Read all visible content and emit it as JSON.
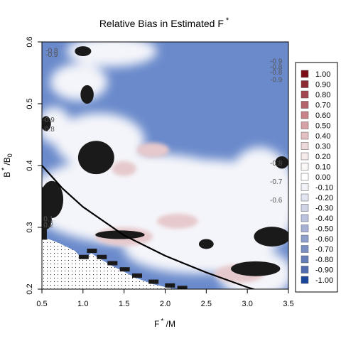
{
  "chart_data": {
    "type": "heatmap",
    "title": "Relative Bias in Estimated F",
    "title_superscript": "*",
    "xlabel": "F",
    "xlabel_superscript": "*",
    "xlabel_suffix": " /M",
    "ylabel": "B",
    "ylabel_superscript": "*",
    "ylabel_suffix": " /B",
    "ylabel_subscript": "0",
    "xlim": [
      0.5,
      3.5
    ],
    "ylim": [
      0.2,
      0.6
    ],
    "x_ticks": [
      "0.5",
      "1.0",
      "1.5",
      "2.0",
      "2.5",
      "3.0",
      "3.5"
    ],
    "y_ticks": [
      "0.2",
      "0.3",
      "0.4",
      "0.5",
      "0.6"
    ],
    "background_color": "#6a8acb",
    "legend": {
      "placement": "right",
      "entries": [
        {
          "label": "1.00",
          "color": "#7a0d16"
        },
        {
          "label": "0.90",
          "color": "#8e2a33"
        },
        {
          "label": "0.80",
          "color": "#a2474f"
        },
        {
          "label": "0.70",
          "color": "#b5646b"
        },
        {
          "label": "0.60",
          "color": "#c78388"
        },
        {
          "label": "0.50",
          "color": "#d6a2a5"
        },
        {
          "label": "0.40",
          "color": "#e3c0c2"
        },
        {
          "label": "0.30",
          "color": "#eed9da"
        },
        {
          "label": "0.20",
          "color": "#f6ecec"
        },
        {
          "label": "0.10",
          "color": "#fbf7f7"
        },
        {
          "label": "0.00",
          "color": "#ffffff"
        },
        {
          "label": "-0.10",
          "color": "#f2f3f8"
        },
        {
          "label": "-0.20",
          "color": "#e2e5f1"
        },
        {
          "label": "-0.30",
          "color": "#cfd4e8"
        },
        {
          "label": "-0.40",
          "color": "#bbc3df"
        },
        {
          "label": "-0.50",
          "color": "#a6b1d5"
        },
        {
          "label": "-0.60",
          "color": "#90a0cc"
        },
        {
          "label": "-0.70",
          "color": "#7b8fc3"
        },
        {
          "label": "-0.80",
          "color": "#667eb9"
        },
        {
          "label": "-0.90",
          "color": "#506caf"
        },
        {
          "label": "-1.00",
          "color": "#19459a"
        }
      ]
    },
    "curve": [
      [
        0.5,
        0.4
      ],
      [
        0.75,
        0.363
      ],
      [
        1.0,
        0.333
      ],
      [
        1.5,
        0.287
      ],
      [
        2.0,
        0.254
      ],
      [
        2.5,
        0.227
      ],
      [
        3.0,
        0.203
      ],
      [
        3.1,
        0.199
      ]
    ],
    "regions": {
      "white_zones": [
        {
          "cx": 1.75,
          "cy": 0.345,
          "rx": 1.45,
          "ry": 0.075
        },
        {
          "cx": 3.15,
          "cy": 0.345,
          "rx": 0.45,
          "ry": 0.085
        },
        {
          "cx": 2.4,
          "cy": 0.38,
          "rx": 0.9,
          "ry": 0.03
        },
        {
          "cx": 1.2,
          "cy": 0.44,
          "rx": 0.55,
          "ry": 0.045
        },
        {
          "cx": 0.95,
          "cy": 0.535,
          "rx": 0.35,
          "ry": 0.03
        },
        {
          "cx": 1.35,
          "cy": 0.585,
          "rx": 0.55,
          "ry": 0.025
        },
        {
          "cx": 0.65,
          "cy": 0.465,
          "rx": 0.2,
          "ry": 0.03
        },
        {
          "cx": 2.4,
          "cy": 0.265,
          "rx": 0.9,
          "ry": 0.04
        },
        {
          "cx": 3.1,
          "cy": 0.225,
          "rx": 0.45,
          "ry": 0.04
        }
      ],
      "pink_zones": [
        {
          "cx": 1.5,
          "cy": 0.285,
          "rx": 0.35,
          "ry": 0.015
        },
        {
          "cx": 1.85,
          "cy": 0.425,
          "rx": 0.2,
          "ry": 0.012
        },
        {
          "cx": 2.15,
          "cy": 0.31,
          "rx": 0.25,
          "ry": 0.012
        },
        {
          "cx": 1.5,
          "cy": 0.395,
          "rx": 0.15,
          "ry": 0.012
        },
        {
          "cx": 2.9,
          "cy": 0.225,
          "rx": 0.3,
          "ry": 0.015
        }
      ],
      "black_blobs": [
        {
          "cx": 1.0,
          "cy": 0.585,
          "rx": 0.1,
          "ry": 0.008
        },
        {
          "cx": 1.05,
          "cy": 0.515,
          "rx": 0.08,
          "ry": 0.015
        },
        {
          "cx": 0.55,
          "cy": 0.468,
          "rx": 0.06,
          "ry": 0.012
        },
        {
          "cx": 1.16,
          "cy": 0.413,
          "rx": 0.22,
          "ry": 0.027
        },
        {
          "cx": 0.62,
          "cy": 0.345,
          "rx": 0.14,
          "ry": 0.03
        },
        {
          "cx": 0.56,
          "cy": 0.315,
          "rx": 0.06,
          "ry": 0.018
        },
        {
          "cx": 1.45,
          "cy": 0.288,
          "rx": 0.3,
          "ry": 0.007
        },
        {
          "cx": 2.5,
          "cy": 0.273,
          "rx": 0.09,
          "ry": 0.008
        },
        {
          "cx": 3.3,
          "cy": 0.285,
          "rx": 0.22,
          "ry": 0.016
        },
        {
          "cx": 3.1,
          "cy": 0.233,
          "rx": 0.3,
          "ry": 0.012
        },
        {
          "cx": 3.42,
          "cy": 0.405,
          "rx": 0.08,
          "ry": 0.01
        }
      ],
      "black_staircase": [
        [
          1.0,
          0.252
        ],
        [
          1.1,
          0.262
        ],
        [
          1.22,
          0.252
        ],
        [
          1.35,
          0.242
        ],
        [
          1.5,
          0.232
        ],
        [
          1.65,
          0.222
        ],
        [
          1.85,
          0.212
        ],
        [
          2.05,
          0.206
        ],
        [
          2.2,
          0.202
        ]
      ]
    },
    "contour_labels": [
      {
        "x": 0.62,
        "y": 0.582,
        "text": "-0.8"
      },
      {
        "x": 0.62,
        "y": 0.576,
        "text": "-0.9"
      },
      {
        "x": 3.35,
        "y": 0.565,
        "text": "-0.9"
      },
      {
        "x": 3.35,
        "y": 0.556,
        "text": "-0.8"
      },
      {
        "x": 3.35,
        "y": 0.547,
        "text": "-0.8"
      },
      {
        "x": 3.35,
        "y": 0.535,
        "text": "-0.9"
      },
      {
        "x": 0.58,
        "y": 0.47,
        "text": "-0.9"
      },
      {
        "x": 0.58,
        "y": 0.455,
        "text": "-0.8"
      },
      {
        "x": 3.35,
        "y": 0.4,
        "text": "-0.8"
      },
      {
        "x": 3.35,
        "y": 0.37,
        "text": "-0.7"
      },
      {
        "x": 3.35,
        "y": 0.34,
        "text": "-0.6"
      },
      {
        "x": 0.58,
        "y": 0.3,
        "text": "0.2"
      },
      {
        "x": 0.58,
        "y": 0.31,
        "text": "0.1"
      }
    ]
  }
}
